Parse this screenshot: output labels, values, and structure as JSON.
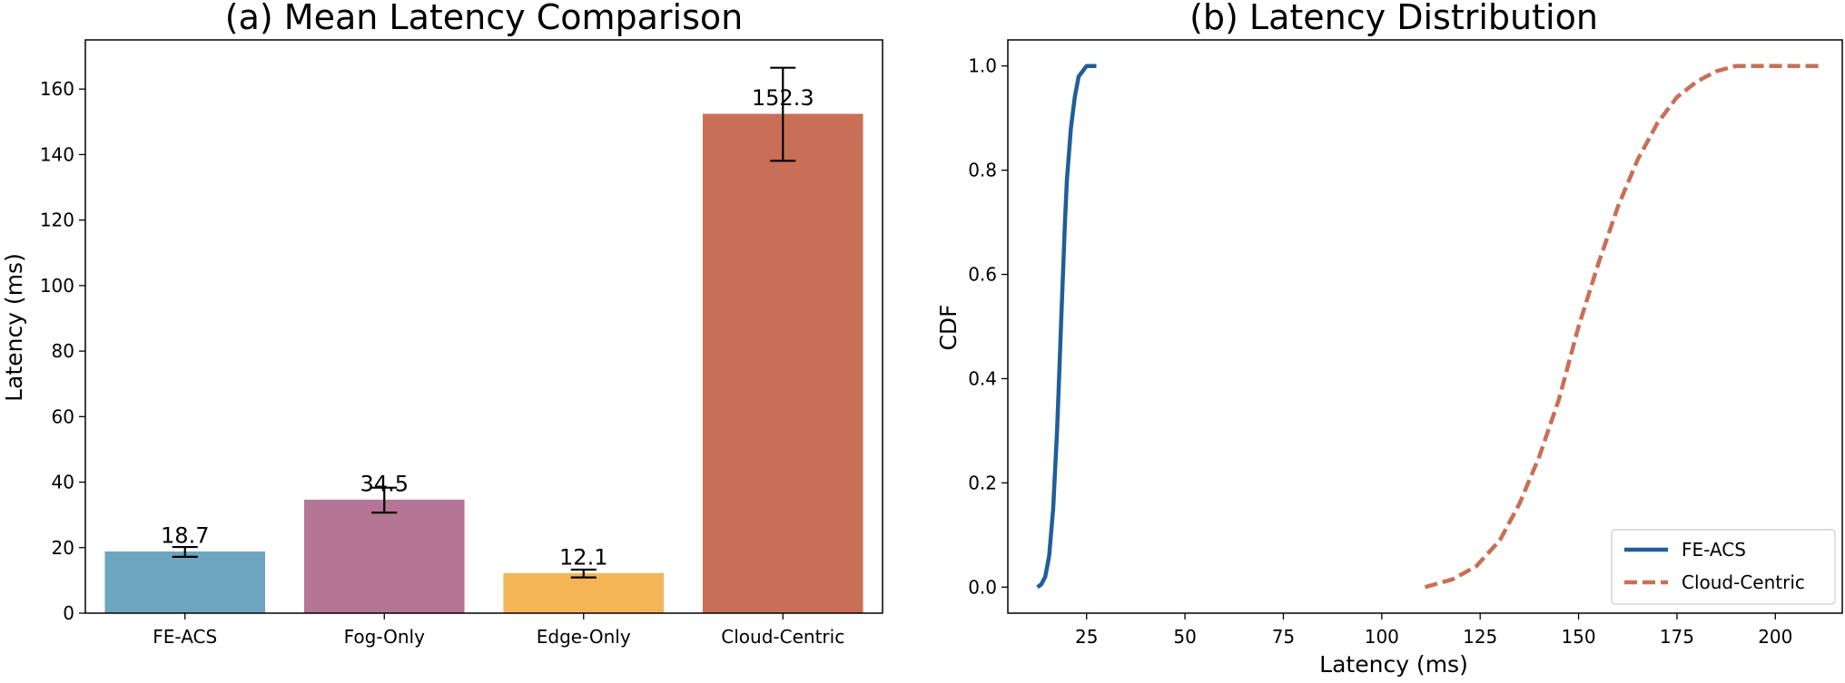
{
  "chart_data": [
    {
      "type": "bar",
      "title": "(a) Mean Latency Comparison",
      "xlabel": "",
      "ylabel": "Latency (ms)",
      "ylim": [
        0,
        175
      ],
      "yticks": [
        0,
        20,
        40,
        60,
        80,
        100,
        120,
        140,
        160
      ],
      "grid": false,
      "categories": [
        "FE-ACS",
        "Fog-Only",
        "Edge-Only",
        "Cloud-Centric"
      ],
      "values": [
        18.7,
        34.5,
        12.1,
        152.3
      ],
      "value_labels": [
        "18.7",
        "34.5",
        "12.1",
        "152.3"
      ],
      "errors": [
        1.5,
        3.8,
        1.2,
        14.2
      ],
      "colors": [
        "#6ea6c0",
        "#b47694",
        "#f3b556",
        "#c96f57"
      ]
    },
    {
      "type": "line",
      "title": "(b) Latency Distribution",
      "xlabel": "Latency (ms)",
      "ylabel": "CDF",
      "xlim": [
        5,
        217
      ],
      "ylim": [
        -0.05,
        1.05
      ],
      "xticks": [
        25,
        50,
        75,
        100,
        125,
        150,
        175,
        200
      ],
      "yticks": [
        0.0,
        0.2,
        0.4,
        0.6,
        0.8,
        1.0
      ],
      "ytick_labels": [
        "0.0",
        "0.2",
        "0.4",
        "0.6",
        "0.8",
        "1.0"
      ],
      "grid": false,
      "legend_position": "lower-right",
      "series": [
        {
          "name": "FE-ACS",
          "color": "#1f5f99",
          "style": "solid",
          "x": [
            12.5,
            13.5,
            14.5,
            15.5,
            16.5,
            17.5,
            18.0,
            18.5,
            19.0,
            19.5,
            20.0,
            21.0,
            22.0,
            23.0,
            24.0,
            25.0,
            27.5
          ],
          "y": [
            0.0,
            0.005,
            0.02,
            0.06,
            0.15,
            0.3,
            0.4,
            0.5,
            0.6,
            0.7,
            0.78,
            0.88,
            0.94,
            0.98,
            0.99,
            1.0,
            1.0
          ]
        },
        {
          "name": "Cloud-Centric",
          "color": "#c96f57",
          "style": "dashed",
          "x": [
            111,
            118,
            124,
            130,
            135,
            140,
            145,
            150,
            155,
            160,
            165,
            170,
            175,
            180,
            185,
            190,
            200,
            211
          ],
          "y": [
            0.0,
            0.015,
            0.04,
            0.09,
            0.16,
            0.25,
            0.36,
            0.5,
            0.62,
            0.73,
            0.82,
            0.89,
            0.94,
            0.97,
            0.99,
            1.0,
            1.0,
            1.0
          ]
        }
      ]
    }
  ]
}
